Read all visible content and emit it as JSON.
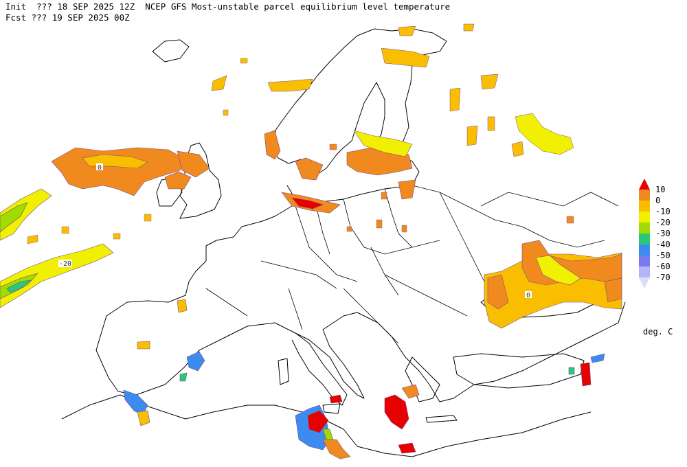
{
  "header": {
    "line1": "Init  ??? 18 SEP 2025 12Z  NCEP GFS Most-unstable parcel equilibrium level temperature",
    "line2": "Fcst ??? 19 SEP 2025 00Z"
  },
  "map": {
    "contour_labels": [
      "0",
      "-20",
      "0"
    ]
  },
  "legend": {
    "levels": [
      {
        "label": "10",
        "color": "#e60000"
      },
      {
        "label": "0",
        "color": "#f08a1e"
      },
      {
        "label": "-10",
        "color": "#fabe00"
      },
      {
        "label": "-20",
        "color": "#f0f000"
      },
      {
        "label": "-30",
        "color": "#a0dc00"
      },
      {
        "label": "-40",
        "color": "#28c878"
      },
      {
        "label": "-50",
        "color": "#3c8cf0"
      },
      {
        "label": "-60",
        "color": "#7878f0"
      },
      {
        "label": "-70",
        "color": "#b4b4f8"
      }
    ],
    "bottom_color": "#dcdcfa",
    "units": "deg. C"
  }
}
